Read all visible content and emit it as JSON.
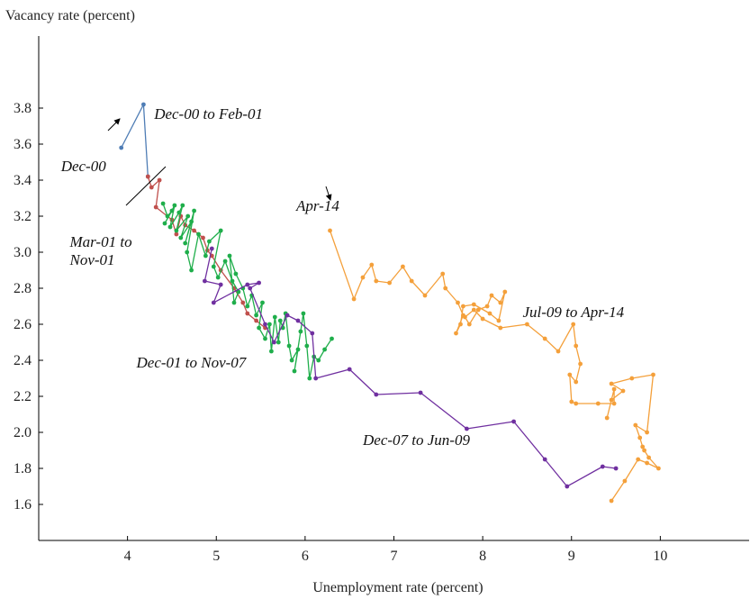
{
  "chart_data": {
    "type": "line",
    "xlabel": "Unemployment rate (percent)",
    "ylabel": "Vacancy rate (percent)",
    "xlim": [
      3.0,
      11.0
    ],
    "ylim": [
      1.4,
      4.2
    ],
    "x_ticks": [
      4,
      5,
      6,
      7,
      8,
      9,
      10
    ],
    "y_ticks": [
      1.6,
      1.8,
      2.0,
      2.2,
      2.4,
      2.6,
      2.8,
      3.0,
      3.2,
      3.4,
      3.6,
      3.8
    ],
    "grid": false,
    "series": [
      {
        "color": "#4f7db5",
        "points": [
          [
            3.93,
            3.58
          ],
          [
            4.18,
            3.82
          ],
          [
            4.23,
            3.42
          ]
        ]
      },
      {
        "color": "#c0504d",
        "points": [
          [
            4.23,
            3.42
          ],
          [
            4.27,
            3.36
          ],
          [
            4.36,
            3.4
          ],
          [
            4.32,
            3.25
          ],
          [
            4.5,
            3.18
          ],
          [
            4.55,
            3.1
          ],
          [
            4.6,
            3.2
          ],
          [
            4.65,
            3.15
          ],
          [
            4.75,
            3.12
          ],
          [
            4.85,
            3.08
          ],
          [
            4.9,
            3.01
          ],
          [
            4.95,
            2.98
          ],
          [
            5.05,
            2.9
          ],
          [
            5.2,
            2.8
          ],
          [
            5.3,
            2.72
          ],
          [
            5.35,
            2.66
          ],
          [
            5.45,
            2.62
          ],
          [
            5.55,
            2.58
          ]
        ]
      },
      {
        "color": "#1fae4b",
        "points": [
          [
            4.4,
            3.27
          ],
          [
            4.45,
            3.2
          ],
          [
            4.5,
            3.23
          ],
          [
            4.42,
            3.16
          ],
          [
            4.53,
            3.26
          ],
          [
            4.48,
            3.14
          ],
          [
            4.58,
            3.22
          ],
          [
            4.62,
            3.26
          ],
          [
            4.55,
            3.12
          ],
          [
            4.68,
            3.2
          ],
          [
            4.6,
            3.08
          ],
          [
            4.72,
            3.17
          ],
          [
            4.65,
            3.05
          ],
          [
            4.75,
            3.23
          ],
          [
            4.67,
            3.0
          ],
          [
            4.72,
            2.9
          ],
          [
            4.8,
            3.1
          ],
          [
            4.88,
            2.98
          ],
          [
            4.92,
            3.06
          ],
          [
            5.05,
            3.12
          ],
          [
            4.97,
            2.92
          ],
          [
            5.02,
            2.86
          ],
          [
            5.1,
            2.95
          ],
          [
            5.18,
            2.84
          ],
          [
            5.25,
            2.78
          ],
          [
            5.2,
            2.72
          ],
          [
            5.15,
            2.98
          ],
          [
            5.22,
            2.88
          ],
          [
            5.3,
            2.8
          ],
          [
            5.35,
            2.7
          ],
          [
            5.4,
            2.76
          ],
          [
            5.45,
            2.65
          ],
          [
            5.52,
            2.72
          ],
          [
            5.48,
            2.58
          ],
          [
            5.55,
            2.52
          ],
          [
            5.6,
            2.6
          ],
          [
            5.62,
            2.45
          ],
          [
            5.66,
            2.64
          ],
          [
            5.7,
            2.5
          ],
          [
            5.72,
            2.62
          ],
          [
            5.75,
            2.58
          ],
          [
            5.78,
            2.66
          ],
          [
            5.82,
            2.48
          ],
          [
            5.85,
            2.4
          ],
          [
            5.92,
            2.46
          ],
          [
            5.88,
            2.34
          ],
          [
            5.95,
            2.56
          ],
          [
            5.98,
            2.66
          ],
          [
            6.02,
            2.48
          ],
          [
            6.05,
            2.3
          ],
          [
            6.1,
            2.42
          ],
          [
            6.15,
            2.4
          ],
          [
            6.22,
            2.46
          ],
          [
            6.3,
            2.52
          ]
        ]
      },
      {
        "color": "#7030a0",
        "points": [
          [
            4.95,
            3.02
          ],
          [
            4.87,
            2.84
          ],
          [
            5.05,
            2.82
          ],
          [
            4.97,
            2.72
          ],
          [
            5.35,
            2.82
          ],
          [
            5.48,
            2.83
          ],
          [
            5.38,
            2.8
          ],
          [
            5.55,
            2.6
          ],
          [
            5.65,
            2.5
          ],
          [
            5.8,
            2.65
          ],
          [
            5.92,
            2.62
          ],
          [
            6.08,
            2.55
          ],
          [
            6.12,
            2.3
          ],
          [
            6.5,
            2.35
          ],
          [
            6.8,
            2.21
          ],
          [
            7.3,
            2.22
          ],
          [
            7.82,
            2.02
          ],
          [
            8.35,
            2.06
          ],
          [
            8.7,
            1.85
          ],
          [
            8.95,
            1.7
          ],
          [
            9.35,
            1.81
          ],
          [
            9.5,
            1.8
          ]
        ]
      },
      {
        "color": "#f4a03b",
        "points": [
          [
            9.45,
            1.62
          ],
          [
            9.6,
            1.73
          ],
          [
            9.75,
            1.85
          ],
          [
            9.85,
            1.83
          ],
          [
            9.98,
            1.8
          ],
          [
            9.87,
            1.86
          ],
          [
            9.82,
            1.9
          ],
          [
            9.8,
            1.92
          ],
          [
            9.77,
            1.97
          ],
          [
            9.72,
            2.04
          ],
          [
            9.85,
            2.0
          ],
          [
            9.92,
            2.32
          ],
          [
            9.68,
            2.3
          ],
          [
            9.45,
            2.27
          ],
          [
            9.58,
            2.23
          ],
          [
            9.45,
            2.18
          ],
          [
            9.4,
            2.08
          ],
          [
            9.48,
            2.24
          ],
          [
            9.48,
            2.16
          ],
          [
            9.3,
            2.16
          ],
          [
            9.05,
            2.16
          ],
          [
            9.0,
            2.17
          ],
          [
            8.98,
            2.32
          ],
          [
            9.05,
            2.28
          ],
          [
            9.1,
            2.38
          ],
          [
            9.05,
            2.48
          ],
          [
            9.02,
            2.6
          ],
          [
            8.85,
            2.45
          ],
          [
            8.7,
            2.52
          ],
          [
            8.5,
            2.6
          ],
          [
            8.2,
            2.58
          ],
          [
            8.0,
            2.63
          ],
          [
            7.9,
            2.68
          ],
          [
            7.8,
            2.64
          ],
          [
            7.85,
            2.6
          ],
          [
            7.95,
            2.68
          ],
          [
            8.05,
            2.7
          ],
          [
            8.1,
            2.76
          ],
          [
            8.2,
            2.72
          ],
          [
            8.25,
            2.78
          ],
          [
            8.18,
            2.62
          ],
          [
            8.08,
            2.66
          ],
          [
            7.9,
            2.71
          ],
          [
            7.78,
            2.7
          ],
          [
            7.75,
            2.6
          ],
          [
            7.7,
            2.55
          ],
          [
            7.78,
            2.65
          ],
          [
            7.72,
            2.72
          ],
          [
            7.58,
            2.8
          ],
          [
            7.55,
            2.88
          ],
          [
            7.35,
            2.76
          ],
          [
            7.2,
            2.84
          ],
          [
            7.1,
            2.92
          ],
          [
            6.95,
            2.83
          ],
          [
            6.8,
            2.84
          ],
          [
            6.75,
            2.93
          ],
          [
            6.65,
            2.86
          ],
          [
            6.55,
            2.74
          ],
          [
            6.28,
            3.12
          ]
        ]
      }
    ],
    "annotations": [
      {
        "text": "Dec-00 to Feb-01",
        "x": 4.3,
        "y": 3.74
      },
      {
        "text": "Dec-00",
        "x": 3.25,
        "y": 3.45
      },
      {
        "text": "Mar-01 to",
        "x": 3.35,
        "y": 3.03
      },
      {
        "text": "Nov-01",
        "x": 3.35,
        "y": 2.93
      },
      {
        "text": "Apr-14",
        "x": 5.9,
        "y": 3.23
      },
      {
        "text": "Jul-09 to Apr-14",
        "x": 8.45,
        "y": 2.64
      },
      {
        "text": "Dec-01 to Nov-07",
        "x": 4.1,
        "y": 2.36
      },
      {
        "text": "Dec-07 to Jun-09",
        "x": 6.65,
        "y": 1.93
      }
    ]
  }
}
